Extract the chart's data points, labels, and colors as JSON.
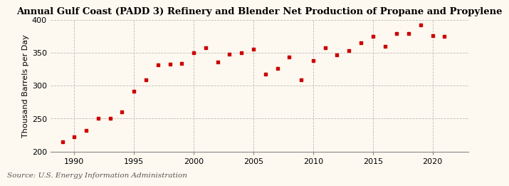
{
  "title": "Annual Gulf Coast (PADD 3) Refinery and Blender Net Production of Propane and Propylene",
  "ylabel": "Thousand Barrels per Day",
  "source": "Source: U.S. Energy Information Administration",
  "background_color": "#fef9f0",
  "marker_color": "#cc0000",
  "years": [
    1989,
    1990,
    1991,
    1992,
    1993,
    1994,
    1995,
    1996,
    1997,
    1998,
    1999,
    2000,
    2001,
    2002,
    2003,
    2004,
    2005,
    2006,
    2007,
    2008,
    2009,
    2010,
    2011,
    2012,
    2013,
    2014,
    2015,
    2016,
    2017,
    2018,
    2019,
    2020,
    2021
  ],
  "values": [
    215,
    222,
    232,
    250,
    251,
    260,
    292,
    309,
    332,
    333,
    334,
    350,
    358,
    336,
    348,
    350,
    356,
    318,
    327,
    344,
    309,
    338,
    358,
    347,
    354,
    365,
    375,
    360,
    380,
    380,
    393,
    376,
    375
  ],
  "xlim": [
    1988,
    2023
  ],
  "ylim": [
    200,
    400
  ],
  "yticks": [
    200,
    250,
    300,
    350,
    400
  ],
  "xticks": [
    1990,
    1995,
    2000,
    2005,
    2010,
    2015,
    2020
  ],
  "grid_color": "#bbbbbb",
  "title_fontsize": 9.5,
  "axis_fontsize": 8,
  "source_fontsize": 7.5
}
